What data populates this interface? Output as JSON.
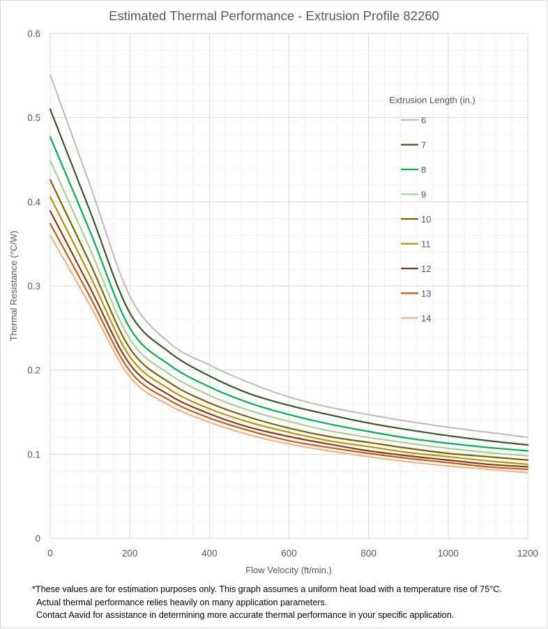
{
  "chart_data": {
    "type": "line",
    "title": "Estimated Thermal Performance - Extrusion Profile 82260",
    "xlabel": "Flow Velocity (ft/min.)",
    "ylabel": "Thermal Resistance (°C/W)",
    "xlim": [
      0,
      1200
    ],
    "ylim": [
      0,
      0.6
    ],
    "xticks": [
      0,
      200,
      400,
      600,
      800,
      1000,
      1200
    ],
    "yticks": [
      0,
      0.1,
      0.2,
      0.3,
      0.4,
      0.5,
      0.6
    ],
    "ytick_labels": [
      "0",
      "0.1",
      "0.2",
      "0.3",
      "0.4",
      "0.5",
      "0.6"
    ],
    "grid": {
      "major": true,
      "minor": true
    },
    "legend": {
      "title": "Extrusion Length (in.)",
      "placement": "right"
    },
    "x": [
      0,
      100,
      200,
      300,
      400,
      500,
      600,
      700,
      800,
      900,
      1000,
      1100,
      1200
    ],
    "series": [
      {
        "name": "6",
        "color": "#bfbfbf",
        "values": [
          0.551,
          0.42,
          0.288,
          0.232,
          0.206,
          0.185,
          0.168,
          0.156,
          0.147,
          0.139,
          0.132,
          0.126,
          0.12
        ]
      },
      {
        "name": "7",
        "color": "#375623",
        "values": [
          0.51,
          0.389,
          0.268,
          0.221,
          0.193,
          0.172,
          0.158,
          0.147,
          0.137,
          0.129,
          0.122,
          0.116,
          0.111
        ]
      },
      {
        "name": "8",
        "color": "#00b050",
        "values": [
          0.477,
          0.365,
          0.25,
          0.206,
          0.18,
          0.161,
          0.147,
          0.136,
          0.127,
          0.119,
          0.113,
          0.108,
          0.104
        ]
      },
      {
        "name": "9",
        "color": "#a9d18e",
        "values": [
          0.449,
          0.344,
          0.237,
          0.195,
          0.17,
          0.152,
          0.139,
          0.128,
          0.12,
          0.113,
          0.107,
          0.102,
          0.098
        ]
      },
      {
        "name": "10",
        "color": "#7f6000",
        "values": [
          0.426,
          0.327,
          0.226,
          0.185,
          0.161,
          0.144,
          0.131,
          0.121,
          0.114,
          0.107,
          0.101,
          0.097,
          0.093
        ]
      },
      {
        "name": "11",
        "color": "#bf9000",
        "values": [
          0.406,
          0.312,
          0.216,
          0.177,
          0.154,
          0.138,
          0.126,
          0.116,
          0.109,
          0.102,
          0.097,
          0.092,
          0.088
        ]
      },
      {
        "name": "12",
        "color": "#843c0c",
        "values": [
          0.389,
          0.298,
          0.207,
          0.17,
          0.148,
          0.132,
          0.121,
          0.112,
          0.104,
          0.098,
          0.093,
          0.088,
          0.085
        ]
      },
      {
        "name": "13",
        "color": "#c55a11",
        "values": [
          0.374,
          0.287,
          0.199,
          0.164,
          0.143,
          0.128,
          0.116,
          0.108,
          0.101,
          0.095,
          0.09,
          0.085,
          0.082
        ]
      },
      {
        "name": "14",
        "color": "#f4b183",
        "values": [
          0.36,
          0.277,
          0.192,
          0.158,
          0.138,
          0.123,
          0.112,
          0.104,
          0.097,
          0.091,
          0.086,
          0.082,
          0.078
        ]
      }
    ]
  },
  "footnote": {
    "line1": "*These values are for estimation purposes only. This graph assumes a uniform heat load with a temperature rise of 75°C.",
    "line2": "Actual thermal performance relies heavily on many application parameters.",
    "line3": "Contact Aavid for assistance in determining more accurate thermal performance in your specific application."
  }
}
